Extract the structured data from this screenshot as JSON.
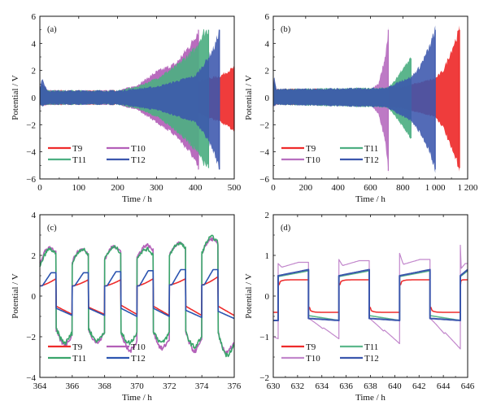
{
  "chart_data": [
    {
      "type": "line",
      "panel": "(a)",
      "xlabel": "Time / h",
      "ylabel": "Potential / V",
      "xlim": [
        0,
        500
      ],
      "ylim": [
        -6,
        6
      ],
      "xticks": [
        0,
        100,
        200,
        300,
        400,
        500
      ],
      "xtick_labels": [
        "0",
        "100",
        "200",
        "300",
        "400",
        "500"
      ],
      "yticks": [
        -6,
        -4,
        -2,
        0,
        2,
        4,
        6
      ],
      "ytick_labels": [
        "−6",
        "−4",
        "−2",
        "0",
        "2",
        "4",
        "6"
      ],
      "legend_placement": "bottom-left",
      "legend_order": [
        "T9",
        "T10",
        "T11",
        "T12"
      ],
      "series": [
        {
          "name": "T9",
          "color": "#ee2b2b",
          "envelope": {
            "t": [
              0,
              5,
              20,
              200,
              300,
              400,
              465,
              480,
              500
            ],
            "upper": [
              0.6,
              1.0,
              0.5,
              0.5,
              0.8,
              1.2,
              1.6,
              1.9,
              2.2
            ],
            "lower": [
              -0.5,
              -0.6,
              -0.5,
              -0.5,
              -0.7,
              -1.1,
              -1.8,
              -2.1,
              -2.4
            ]
          }
        },
        {
          "name": "T10",
          "color": "#b35fb8",
          "envelope": {
            "t": [
              0,
              5,
              20,
              200,
              250,
              300,
              350,
              390,
              408
            ],
            "upper": [
              0.6,
              1.0,
              0.5,
              0.5,
              0.9,
              1.9,
              2.5,
              4.0,
              5.0
            ],
            "lower": [
              -0.5,
              -0.6,
              -0.5,
              -0.5,
              -0.9,
              -1.8,
              -2.8,
              -4.2,
              -5.3
            ]
          }
        },
        {
          "name": "T11",
          "color": "#4daf82",
          "envelope": {
            "t": [
              0,
              5,
              20,
              200,
              250,
              300,
              350,
              400,
              420,
              434
            ],
            "upper": [
              0.6,
              1.0,
              0.5,
              0.5,
              0.8,
              1.4,
              2.3,
              3.6,
              4.8,
              5.0
            ],
            "lower": [
              -0.5,
              -0.6,
              -0.5,
              -0.5,
              -0.8,
              -1.4,
              -2.4,
              -3.8,
              -4.8,
              -5.2
            ]
          }
        },
        {
          "name": "T12",
          "color": "#3b56ad",
          "envelope": {
            "t": [
              0,
              5,
              20,
              200,
              300,
              400,
              430,
              450,
              462
            ],
            "upper": [
              0.6,
              1.4,
              0.5,
              0.5,
              0.8,
              1.6,
              2.8,
              3.8,
              5.0
            ],
            "lower": [
              -0.5,
              -0.6,
              -0.5,
              -0.5,
              -0.9,
              -1.8,
              -3.0,
              -4.2,
              -5.3
            ]
          }
        }
      ]
    },
    {
      "type": "line",
      "panel": "(b)",
      "xlabel": "Time / h",
      "ylabel": "Potential / V",
      "xlim": [
        0,
        1200
      ],
      "ylim": [
        -6,
        6
      ],
      "xticks": [
        0,
        200,
        400,
        600,
        800,
        1000,
        1200
      ],
      "xtick_labels": [
        "0",
        "200",
        "400",
        "600",
        "800",
        "1 000",
        "1 200"
      ],
      "yticks": [
        -6,
        -4,
        -2,
        0,
        2,
        4,
        6
      ],
      "ytick_labels": [
        "−6",
        "−4",
        "−2",
        "0",
        "2",
        "4",
        "6"
      ],
      "legend_placement": "bottom-left",
      "legend_order": [
        "T9",
        "T11",
        "T10",
        "T12"
      ],
      "series": [
        {
          "name": "T9",
          "color": "#ee2b2b",
          "envelope": {
            "t": [
              0,
              5,
              20,
              600,
              800,
              1000,
              1050,
              1100,
              1150
            ],
            "upper": [
              0.6,
              1.2,
              0.6,
              0.6,
              0.8,
              1.4,
              2.0,
              3.5,
              5.0
            ],
            "lower": [
              -0.5,
              -0.6,
              -0.5,
              -0.5,
              -0.8,
              -1.4,
              -2.2,
              -3.8,
              -5.2
            ]
          }
        },
        {
          "name": "T10",
          "color": "#b76fc0",
          "envelope": {
            "t": [
              0,
              5,
              20,
              600,
              650,
              690,
              710
            ],
            "upper": [
              0.6,
              1.2,
              0.6,
              0.6,
              1.0,
              3.0,
              5.0
            ],
            "lower": [
              -0.5,
              -0.6,
              -0.5,
              -0.5,
              -1.2,
              -3.2,
              -5.4
            ]
          }
        },
        {
          "name": "T11",
          "color": "#4daf82",
          "envelope": {
            "t": [
              0,
              5,
              20,
              700,
              750,
              800,
              850
            ],
            "upper": [
              0.6,
              1.2,
              0.6,
              0.7,
              1.2,
              2.2,
              2.9
            ],
            "lower": [
              -0.5,
              -0.6,
              -0.5,
              -0.7,
              -1.3,
              -2.2,
              -3.0
            ]
          }
        },
        {
          "name": "T12",
          "color": "#3b56ad",
          "envelope": {
            "t": [
              0,
              5,
              20,
              700,
              800,
              850,
              900,
              960,
              1000
            ],
            "upper": [
              0.6,
              1.6,
              0.6,
              0.7,
              1.3,
              1.5,
              2.2,
              3.6,
              5.0
            ],
            "lower": [
              -0.5,
              -0.6,
              -0.5,
              -0.7,
              -1.4,
              -1.7,
              -2.5,
              -3.8,
              -5.3
            ]
          }
        }
      ]
    },
    {
      "type": "line",
      "panel": "(c)",
      "xlabel": "Time / h",
      "ylabel": "Potential / V",
      "xlim": [
        364,
        376
      ],
      "ylim": [
        -4,
        4
      ],
      "xticks": [
        364,
        366,
        368,
        370,
        372,
        374,
        376
      ],
      "xtick_labels": [
        "364",
        "366",
        "368",
        "370",
        "372",
        "374",
        "376"
      ],
      "yticks": [
        -4,
        -2,
        0,
        2,
        4
      ],
      "ytick_labels": [
        "−4",
        "−2",
        "0",
        "2",
        "4"
      ],
      "legend_placement": "bottom-left",
      "legend_order": [
        "T9",
        "T10",
        "T11",
        "T12"
      ],
      "cycle_period_h": 2,
      "switch_offset_h": 1,
      "cycles": [
        {
          "T9": [
            0.5,
            0.85,
            -0.5,
            -0.9
          ],
          "T10": [
            1.6,
            2.4,
            -1.7,
            -2.4
          ],
          "T11": [
            1.4,
            2.3,
            -1.6,
            -2.3
          ],
          "T12": [
            0.5,
            1.15,
            -0.6,
            -0.95
          ]
        },
        {
          "T9": [
            0.5,
            0.8,
            -0.55,
            -0.9
          ],
          "T10": [
            1.7,
            2.3,
            -1.6,
            -2.3
          ],
          "T11": [
            1.6,
            2.3,
            -1.6,
            -2.2
          ],
          "T12": [
            0.5,
            1.15,
            -0.6,
            -0.95
          ]
        },
        {
          "T9": [
            0.5,
            0.8,
            -0.45,
            -0.9
          ],
          "T10": [
            1.8,
            2.45,
            -1.8,
            -2.7
          ],
          "T11": [
            1.8,
            2.4,
            -1.8,
            -2.3
          ],
          "T12": [
            0.5,
            1.2,
            -0.6,
            -1.0
          ]
        },
        {
          "T9": [
            0.5,
            0.85,
            -0.5,
            -0.95
          ],
          "T10": [
            1.9,
            2.5,
            -1.7,
            -2.6
          ],
          "T11": [
            1.9,
            2.3,
            -1.7,
            -2.3
          ],
          "T12": [
            0.5,
            1.25,
            -0.6,
            -1.0
          ]
        },
        {
          "T9": [
            0.55,
            0.85,
            -0.5,
            -0.95
          ],
          "T10": [
            2.0,
            2.6,
            -1.8,
            -2.7
          ],
          "T11": [
            2.0,
            2.6,
            -1.8,
            -2.5
          ],
          "T12": [
            0.55,
            1.3,
            -0.7,
            -1.05
          ]
        },
        {
          "T9": [
            0.55,
            0.95,
            -0.5,
            -0.95
          ],
          "T10": [
            2.1,
            2.8,
            -1.8,
            -2.8
          ],
          "T11": [
            2.1,
            2.9,
            -1.8,
            -2.9
          ],
          "T12": [
            0.55,
            1.3,
            -0.75,
            -1.1
          ]
        }
      ],
      "series": [
        {
          "name": "T9",
          "color": "#ee2b2b"
        },
        {
          "name": "T10",
          "color": "#b35fb8"
        },
        {
          "name": "T11",
          "color": "#3aa56b"
        },
        {
          "name": "T12",
          "color": "#2c55b0"
        }
      ]
    },
    {
      "type": "line",
      "panel": "(d)",
      "xlabel": "Time / h",
      "ylabel": "Potential / V",
      "xlim": [
        630,
        646
      ],
      "ylim": [
        -2,
        2
      ],
      "xticks": [
        630,
        632,
        634,
        636,
        638,
        640,
        642,
        644,
        646
      ],
      "xtick_labels": [
        "630",
        "632",
        "634",
        "636",
        "638",
        "640",
        "642",
        "644",
        "646"
      ],
      "yticks": [
        -2,
        -1,
        0,
        1,
        2
      ],
      "ytick_labels": [
        "−2",
        "−1",
        "0",
        "1",
        "2"
      ],
      "legend_placement": "bottom-left",
      "legend_order": [
        "T9",
        "T11",
        "T10",
        "T12"
      ],
      "switch_times": [
        630.4,
        632.9,
        635.4,
        637.9,
        640.4,
        642.9,
        645.4
      ],
      "series": [
        {
          "name": "T9",
          "color": "#ee2b2b",
          "charge": 0.4,
          "discharge": -0.4
        },
        {
          "name": "T10",
          "color": "#c287cc",
          "charge_peaks": [
            0.8,
            0.9,
            1.05,
            1.25
          ],
          "charge_plateau": [
            0.83,
            0.87,
            0.9,
            0.8
          ],
          "discharge_end": [
            -1.05,
            -1.17,
            -1.3,
            -1.47
          ]
        },
        {
          "name": "T11",
          "color": "#5cb88c",
          "charge_start": 0.48,
          "charge_end": 0.62,
          "discharge_start": -0.48,
          "discharge_end": -0.6
        },
        {
          "name": "T12",
          "color": "#3b56ad",
          "charge_start": 0.5,
          "charge_end": 0.65,
          "discharge_start": -0.55,
          "discharge_end": -0.6
        }
      ]
    }
  ]
}
